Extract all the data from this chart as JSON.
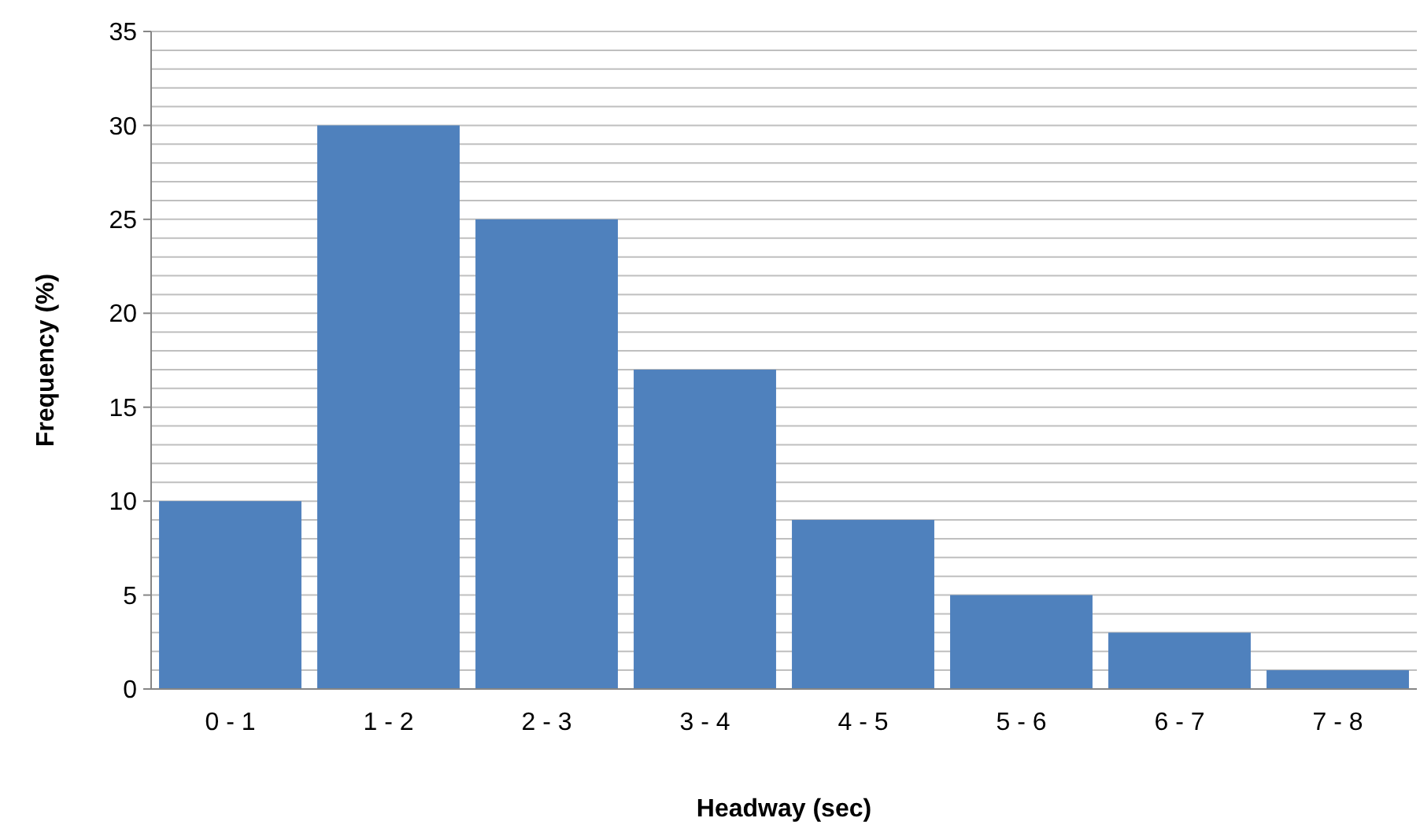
{
  "chart_data": {
    "type": "bar",
    "xlabel": "Headway (sec)",
    "ylabel": "Frequency (%)",
    "categories": [
      "0 - 1",
      "1 - 2",
      "2 - 3",
      "3 - 4",
      "4 - 5",
      "5 - 6",
      "6 - 7",
      "7 - 8"
    ],
    "values": [
      10,
      30,
      25,
      17,
      9,
      5,
      3,
      1
    ],
    "color": "#4f81bd",
    "ylim": [
      0,
      35
    ],
    "yticks": [
      0,
      {
        "value": 1,
        "label": null
      },
      {
        "value": 2,
        "label": null
      },
      {
        "value": 3,
        "label": null
      },
      {
        "value": 4,
        "label": null
      },
      5,
      {
        "value": 6,
        "label": null
      },
      {
        "value": 7,
        "label": null
      },
      {
        "value": 8,
        "label": null
      },
      {
        "value": 9,
        "label": null
      },
      10,
      {
        "value": 11,
        "label": null
      },
      {
        "value": 12,
        "label": null
      },
      {
        "value": 13,
        "label": null
      },
      {
        "value": 14,
        "label": null
      },
      15,
      {
        "value": 16,
        "label": null
      },
      {
        "value": 17,
        "label": null
      },
      {
        "value": 18,
        "label": null
      },
      {
        "value": 19,
        "label": null
      },
      20,
      {
        "value": 21,
        "label": null
      },
      {
        "value": 22,
        "label": null
      },
      {
        "value": 23,
        "label": null
      },
      {
        "value": 24,
        "label": null
      },
      25,
      {
        "value": 26,
        "label": null
      },
      {
        "value": 27,
        "label": null
      },
      {
        "value": 28,
        "label": null
      },
      {
        "value": 29,
        "label": null
      },
      30,
      {
        "value": 31,
        "label": null
      },
      {
        "value": 32,
        "label": null
      },
      {
        "value": 33,
        "label": null
      },
      {
        "value": 34,
        "label": null
      },
      35
    ],
    "grid": "y"
  }
}
